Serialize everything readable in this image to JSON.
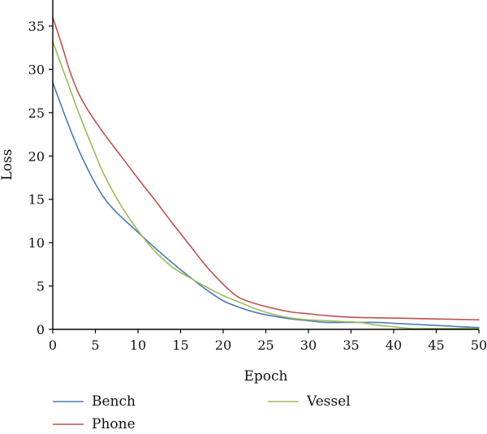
{
  "chart_data": {
    "type": "line",
    "xlabel": "Epoch",
    "ylabel": "Loss",
    "xlim": [
      0,
      50
    ],
    "ylim": [
      0,
      38
    ],
    "xticks": [
      0,
      5,
      10,
      15,
      20,
      25,
      30,
      35,
      40,
      45,
      50
    ],
    "yticks": [
      0,
      5,
      10,
      15,
      20,
      25,
      30,
      35
    ],
    "grid": false,
    "legend_position": "bottom",
    "series": [
      {
        "name": "Bench",
        "color": "#4a7ab5",
        "x": [
          0,
          1,
          2,
          3,
          4,
          5,
          6,
          7,
          8,
          10,
          12,
          14,
          16,
          18,
          20,
          22,
          24,
          26,
          28,
          30,
          32,
          34,
          36,
          38,
          40,
          42,
          44,
          46,
          48,
          50
        ],
        "y": [
          28.5,
          25.8,
          23.2,
          20.8,
          18.7,
          16.8,
          15.2,
          14.0,
          13.0,
          11.2,
          9.4,
          7.7,
          6.1,
          4.6,
          3.3,
          2.5,
          1.9,
          1.5,
          1.2,
          1.0,
          0.8,
          0.8,
          0.8,
          0.8,
          0.7,
          0.6,
          0.5,
          0.4,
          0.3,
          0.2
        ]
      },
      {
        "name": "Phone",
        "color": "#c0504d",
        "x": [
          0,
          1,
          2,
          3,
          4,
          5,
          6,
          8,
          10,
          12,
          14,
          16,
          18,
          20,
          21,
          22,
          24,
          26,
          28,
          30,
          32,
          35,
          40,
          45,
          50
        ],
        "y": [
          36.0,
          33.0,
          29.8,
          27.3,
          25.5,
          24.0,
          22.6,
          20.0,
          17.4,
          14.9,
          12.3,
          9.8,
          7.3,
          5.2,
          4.3,
          3.6,
          2.9,
          2.4,
          2.0,
          1.8,
          1.6,
          1.4,
          1.3,
          1.2,
          1.1
        ]
      },
      {
        "name": "Vessel",
        "color": "#9bbb59",
        "x": [
          0,
          1,
          2,
          3,
          4,
          5,
          6,
          8,
          10,
          12,
          14,
          16,
          18,
          20,
          22,
          24,
          26,
          28,
          30,
          32,
          34,
          36,
          38,
          40,
          42,
          44,
          46,
          48,
          50
        ],
        "y": [
          33.2,
          30.5,
          27.8,
          25.1,
          22.6,
          20.2,
          17.9,
          14.3,
          11.4,
          9.0,
          7.2,
          6.0,
          4.9,
          3.9,
          3.1,
          2.3,
          1.7,
          1.3,
          1.1,
          1.0,
          0.9,
          0.8,
          0.5,
          0.3,
          0.1,
          0.1,
          0.1,
          0.1,
          0.1
        ]
      }
    ]
  }
}
